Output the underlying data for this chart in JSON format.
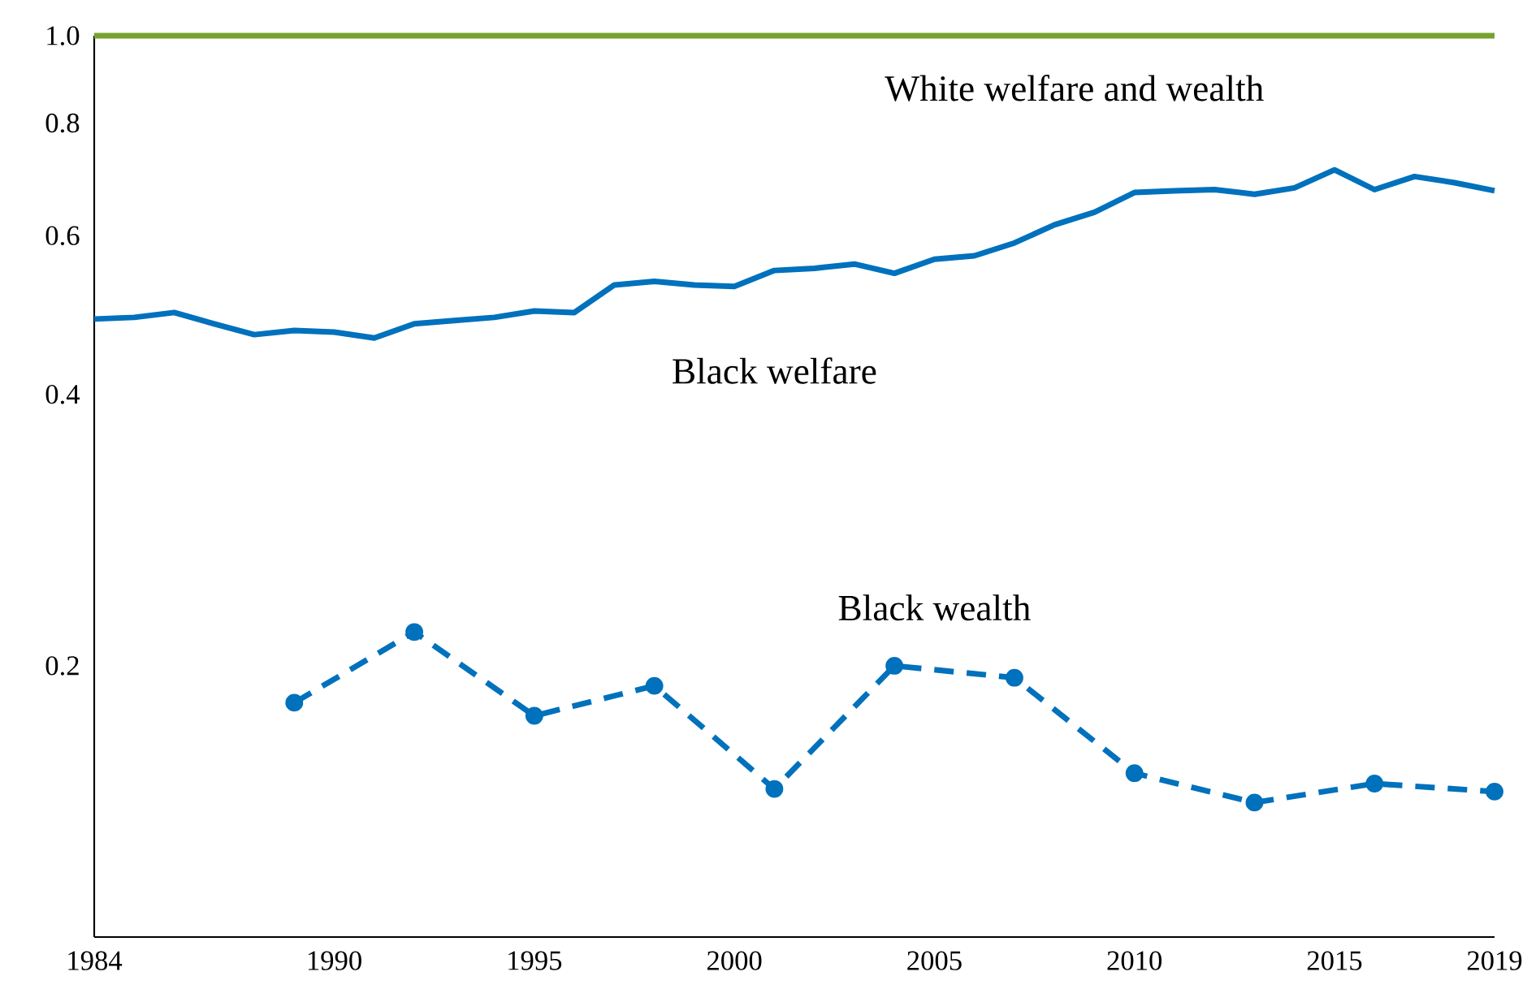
{
  "chart_data": {
    "type": "line",
    "log": "y",
    "xlim": [
      1984,
      2019
    ],
    "ylim": [
      0.1,
      1.0
    ],
    "xticks": [
      1984,
      1990,
      1995,
      2000,
      2005,
      2010,
      2015,
      2019
    ],
    "yticks": [
      0.2,
      0.4,
      0.6,
      0.8,
      {
        "value": 1.0,
        "label": "1.0"
      }
    ],
    "series": [
      {
        "name": "White welfare and wealth",
        "color": "#78a22f",
        "marker": "none",
        "line_style": "solid",
        "x": [
          1984,
          2019
        ],
        "values": [
          1.0,
          1.0
        ]
      },
      {
        "name": "Black welfare",
        "color": "#0071bc",
        "marker": "none",
        "line_style": "solid",
        "x": [
          1984,
          1985,
          1986,
          1987,
          1988,
          1989,
          1990,
          1991,
          1992,
          1993,
          1994,
          1995,
          1996,
          1997,
          1998,
          1999,
          2000,
          2001,
          2002,
          2003,
          2004,
          2005,
          2006,
          2007,
          2008,
          2009,
          2010,
          2011,
          2012,
          2013,
          2014,
          2015,
          2016,
          2017,
          2018,
          2019
        ],
        "values": [
          0.485,
          0.487,
          0.493,
          0.479,
          0.466,
          0.471,
          0.469,
          0.462,
          0.479,
          0.483,
          0.487,
          0.495,
          0.493,
          0.529,
          0.534,
          0.529,
          0.527,
          0.549,
          0.552,
          0.558,
          0.545,
          0.565,
          0.57,
          0.589,
          0.617,
          0.637,
          0.67,
          0.673,
          0.675,
          0.667,
          0.678,
          0.71,
          0.675,
          0.698,
          0.687,
          0.673
        ]
      },
      {
        "name": "Black wealth",
        "color": "#0071bc",
        "marker": "circle",
        "line_style": "dashed",
        "x": [
          1989,
          1992,
          1995,
          1998,
          2001,
          2004,
          2007,
          2010,
          2013,
          2016,
          2019
        ],
        "values": [
          0.182,
          0.218,
          0.176,
          0.19,
          0.146,
          0.2,
          0.194,
          0.152,
          0.141,
          0.148,
          0.145
        ]
      }
    ]
  }
}
